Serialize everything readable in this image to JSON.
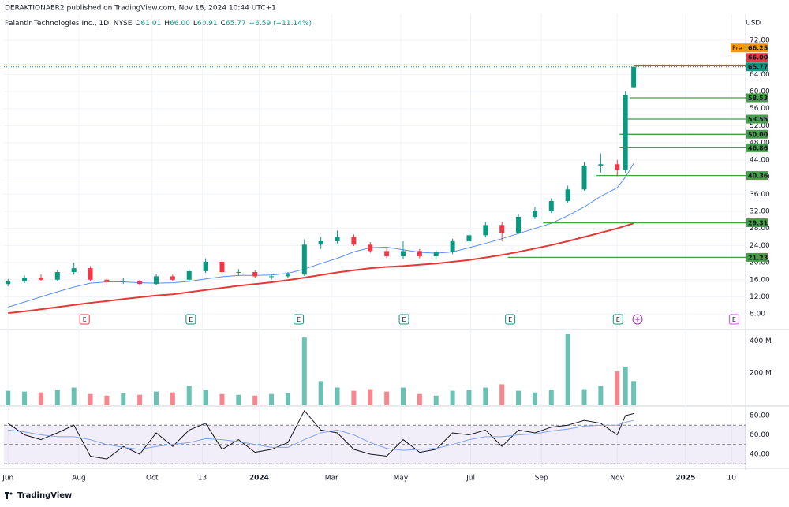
{
  "header": {
    "publisher": "DERAKTIONAER2 published on TradingView.com, Nov 18, 2024 10:44 UTC+1",
    "symbol": "Palantir Technologies Inc., 1D, NYSE",
    "ohlc": [
      {
        "key": "O",
        "value": "61.01"
      },
      {
        "key": "H",
        "value": "66.00"
      },
      {
        "key": "L",
        "value": "60.91"
      },
      {
        "key": "C",
        "value": "65.77"
      }
    ],
    "change": "+6.59 (+11.14%)",
    "currency": "USD"
  },
  "footer": {
    "brand": "TradingView"
  },
  "chart_data": [
    {
      "type": "candlestick",
      "up_color": "#089981",
      "down_color": "#f23645",
      "grid": true,
      "x": [
        0,
        2,
        4,
        6,
        8,
        10,
        12,
        14,
        16,
        18,
        20,
        22,
        24,
        26,
        28,
        30,
        32,
        34,
        36,
        38,
        40,
        42,
        44,
        46,
        48,
        50,
        52,
        54,
        56,
        58,
        60,
        62,
        64,
        66,
        68,
        70,
        72,
        74,
        75,
        76
      ],
      "open": [
        15.0,
        15.6,
        16.5,
        16.0,
        17.8,
        18.7,
        16.0,
        15.5,
        15.7,
        15.0,
        16.8,
        16.0,
        18.0,
        20.2,
        17.8,
        17.8,
        16.8,
        16.8,
        17.2,
        24.2,
        25.0,
        26.0,
        24.2,
        22.7,
        21.5,
        22.7,
        21.5,
        22.4,
        25.0,
        26.4,
        28.8,
        27.0,
        30.7,
        32.0,
        34.4,
        37.1,
        42.7,
        43.0,
        41.7,
        61.01
      ],
      "high": [
        16.2,
        17.0,
        17.2,
        18.3,
        20.0,
        19.2,
        16.5,
        16.4,
        16.0,
        17.3,
        17.2,
        18.5,
        21.0,
        20.6,
        18.5,
        18.2,
        17.4,
        17.8,
        25.5,
        26.0,
        27.5,
        26.6,
        24.8,
        23.3,
        25.0,
        23.2,
        22.9,
        25.6,
        27.0,
        29.5,
        29.6,
        31.3,
        33.0,
        35.0,
        38.0,
        43.5,
        45.5,
        44.0,
        60.0,
        66.0
      ],
      "low": [
        14.5,
        15.2,
        15.6,
        15.6,
        17.2,
        15.6,
        14.9,
        15.0,
        14.6,
        14.8,
        15.6,
        15.7,
        17.6,
        17.4,
        16.9,
        16.5,
        16.0,
        16.3,
        16.9,
        23.2,
        24.5,
        23.9,
        22.3,
        21.0,
        20.9,
        21.0,
        20.8,
        22.0,
        24.5,
        25.9,
        25.0,
        26.7,
        30.2,
        31.6,
        34.0,
        36.8,
        41.0,
        40.2,
        41.0,
        60.91
      ],
      "close": [
        15.6,
        16.5,
        16.0,
        17.8,
        18.7,
        16.0,
        15.5,
        15.7,
        15.0,
        16.8,
        16.0,
        18.0,
        20.2,
        17.8,
        17.8,
        16.8,
        16.8,
        17.2,
        24.2,
        25.0,
        26.0,
        24.2,
        22.7,
        21.5,
        22.7,
        21.5,
        22.4,
        25.0,
        26.4,
        28.8,
        27.0,
        30.7,
        32.0,
        34.4,
        37.1,
        42.7,
        43.0,
        41.7,
        59.18,
        65.77
      ],
      "series": [
        {
          "color": "#5b8def",
          "values": [
            9.6,
            10.8,
            12.0,
            13.2,
            14.3,
            15.2,
            15.5,
            15.5,
            15.3,
            15.2,
            15.3,
            15.6,
            16.2,
            16.7,
            17.0,
            17.0,
            17.1,
            17.5,
            18.5,
            19.8,
            21.0,
            22.5,
            23.5,
            23.6,
            23.0,
            22.4,
            22.2,
            22.5,
            23.5,
            24.5,
            25.6,
            26.8,
            28.0,
            29.2,
            31.0,
            33.0,
            35.5,
            37.5,
            40.0,
            43.2
          ]
        },
        {
          "color": "#e53935",
          "values": [
            8.2,
            8.6,
            9.1,
            9.6,
            10.1,
            10.6,
            11.0,
            11.5,
            11.9,
            12.3,
            12.6,
            13.1,
            13.6,
            14.1,
            14.6,
            15.0,
            15.4,
            15.9,
            16.5,
            17.1,
            17.7,
            18.2,
            18.7,
            19.0,
            19.2,
            19.5,
            19.8,
            20.2,
            20.6,
            21.2,
            21.8,
            22.5,
            23.3,
            24.1,
            25.0,
            26.0,
            27.0,
            28.0,
            28.6,
            29.2
          ]
        }
      ],
      "xlim": [
        -0.5,
        89.6
      ],
      "xticks": [
        {
          "value": 0,
          "label": "Jun"
        },
        {
          "value": 8.6,
          "label": "Aug"
        },
        {
          "value": 17.5,
          "label": "Oct"
        },
        {
          "value": 23.6,
          "label": "13"
        },
        {
          "value": 30.5,
          "label": "2024"
        },
        {
          "value": 39.3,
          "label": "Mar"
        },
        {
          "value": 47.7,
          "label": "May"
        },
        {
          "value": 56.2,
          "label": "Jul"
        },
        {
          "value": 64.8,
          "label": "Sep"
        },
        {
          "value": 74,
          "label": "Nov"
        },
        {
          "value": 82.3,
          "label": "2025"
        },
        {
          "value": 87.9,
          "label": "10"
        }
      ],
      "ylim": [
        4.9,
        77.7
      ],
      "yticks": [
        {
          "value": 72,
          "label": "72.00"
        },
        {
          "value": 64,
          "label": "64.00"
        },
        {
          "value": 60,
          "label": "60.00"
        },
        {
          "value": 56,
          "label": "56.00"
        },
        {
          "value": 52,
          "label": "52.00"
        },
        {
          "value": 48,
          "label": "48.00"
        },
        {
          "value": 44,
          "label": "44.00"
        },
        {
          "value": 40,
          "label": "40.00"
        },
        {
          "value": 36,
          "label": "36.00"
        },
        {
          "value": 32,
          "label": "32.00"
        },
        {
          "value": 28,
          "label": "28.00"
        },
        {
          "value": 24,
          "label": "24.00"
        },
        {
          "value": 20,
          "label": "20.00"
        },
        {
          "value": 16,
          "label": "16.00"
        },
        {
          "value": 12,
          "label": "12.00"
        },
        {
          "value": 8,
          "label": "8.00"
        }
      ],
      "levels": [
        {
          "value": 66,
          "label": "66.00",
          "x_start": 76,
          "color": "#f23645"
        },
        {
          "value": 58.53,
          "label": "58.53",
          "x_start": 75.5,
          "color": "#43a047"
        },
        {
          "value": 53.55,
          "label": "53.55",
          "x_start": 74.7,
          "color": "#43a047"
        },
        {
          "value": 50,
          "label": "50.00",
          "x_start": 74.3,
          "color": "#43a047"
        },
        {
          "value": 46.86,
          "label": "46.86",
          "x_start": 74.3,
          "color": "#43a047"
        },
        {
          "value": 40.36,
          "label": "40.36",
          "x_start": 71.5,
          "color": "#43a047"
        },
        {
          "value": 29.31,
          "label": "29.31",
          "x_start": 65,
          "color": "#43a047"
        },
        {
          "value": 21.23,
          "label": "21.23",
          "x_start": 60.7,
          "color": "#43a047"
        }
      ],
      "price_labels": [
        {
          "value": 65.77,
          "label": "65.77",
          "color": "#089981"
        },
        {
          "value": 66.25,
          "label": "66.25",
          "tag": "Pre",
          "color": "#ff9800"
        }
      ],
      "events": [
        {
          "label": "E",
          "x": 9.3,
          "color": "#f23645"
        },
        {
          "label": "E",
          "x": 22.2,
          "color": "#089981"
        },
        {
          "label": "E",
          "x": 35.3,
          "color": "#089981"
        },
        {
          "label": "E",
          "x": 48.1,
          "color": "#089981"
        },
        {
          "label": "E",
          "x": 61,
          "color": "#089981"
        },
        {
          "label": "E",
          "x": 74.1,
          "color": "#089981"
        },
        {
          "label": "E",
          "x": 88.2,
          "color": "#e040fb"
        }
      ]
    },
    {
      "type": "bar",
      "values": [
        90,
        85,
        80,
        95,
        110,
        70,
        60,
        75,
        65,
        85,
        80,
        120,
        95,
        70,
        65,
        60,
        70,
        75,
        420,
        150,
        110,
        90,
        100,
        85,
        110,
        70,
        60,
        90,
        95,
        110,
        130,
        90,
        80,
        95,
        445,
        100,
        120,
        210,
        240,
        150
      ],
      "ylim": [
        0,
        460
      ],
      "yticks": [
        {
          "value": 400,
          "label": "400 M"
        },
        {
          "value": 200,
          "label": "200 M"
        }
      ]
    },
    {
      "type": "line",
      "series": [
        {
          "color": "#131722",
          "values": [
            72,
            60,
            55,
            62,
            70,
            38,
            35,
            48,
            40,
            62,
            48,
            65,
            72,
            45,
            55,
            42,
            45,
            52,
            85,
            65,
            62,
            45,
            40,
            38,
            55,
            42,
            45,
            62,
            60,
            65,
            48,
            65,
            62,
            68,
            70,
            75,
            72,
            60,
            80,
            82
          ]
        },
        {
          "color": "#7fa7f0",
          "values": [
            65,
            63,
            60,
            58,
            58,
            55,
            50,
            47,
            45,
            48,
            50,
            52,
            56,
            55,
            53,
            50,
            47,
            47,
            55,
            62,
            65,
            60,
            52,
            46,
            44,
            45,
            46,
            50,
            55,
            58,
            58,
            60,
            61,
            64,
            66,
            69,
            70,
            70,
            73,
            75
          ]
        }
      ],
      "band": [
        30,
        70
      ],
      "guides": [
        70,
        50,
        30
      ],
      "ylim": [
        28.6,
        87.3
      ],
      "yticks": [
        {
          "value": 80,
          "label": "80.00"
        },
        {
          "value": 60,
          "label": "60.00"
        },
        {
          "value": 40,
          "label": "40.00"
        }
      ]
    }
  ]
}
